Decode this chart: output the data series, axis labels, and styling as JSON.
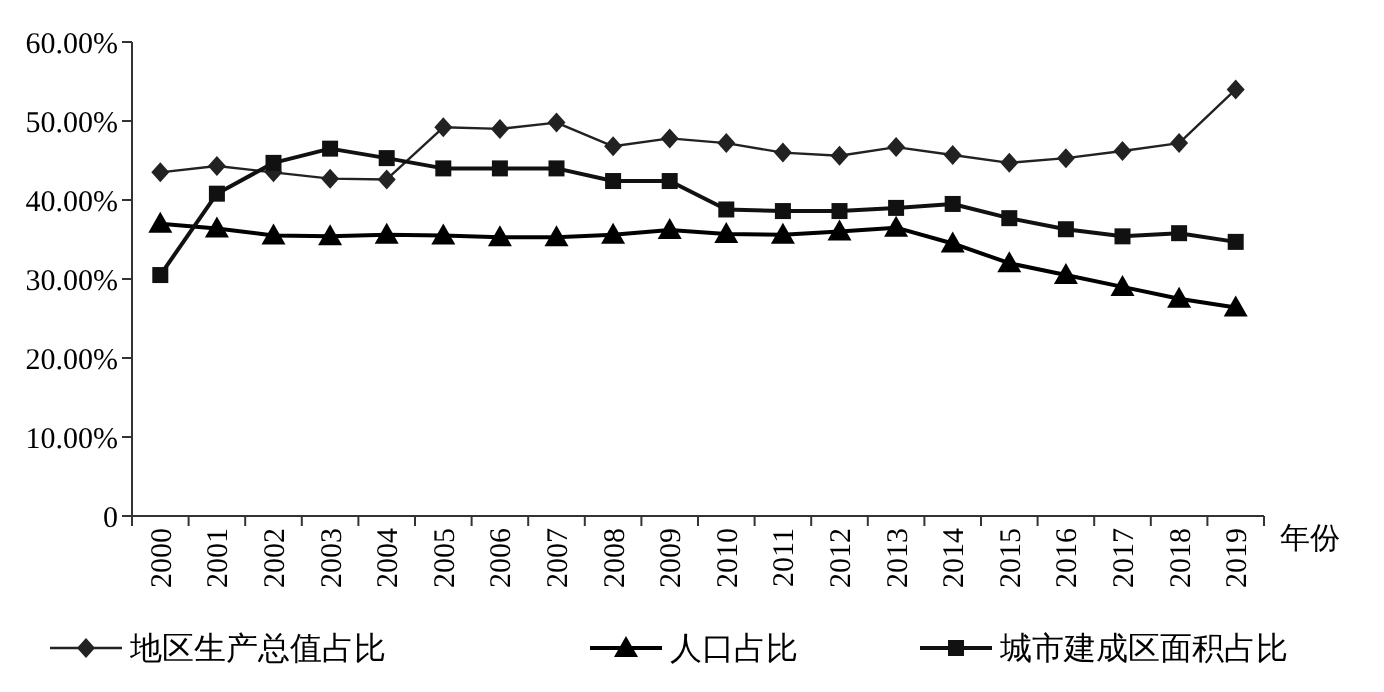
{
  "chart_data": {
    "type": "line",
    "xlabel": "年份",
    "categories": [
      "2000",
      "2001",
      "2002",
      "2003",
      "2004",
      "2005",
      "2006",
      "2007",
      "2008",
      "2009",
      "2010",
      "2011",
      "2012",
      "2013",
      "2014",
      "2015",
      "2016",
      "2017",
      "2018",
      "2019"
    ],
    "series": [
      {
        "name": "地区生产总值占比",
        "color": "#222222",
        "marker": "diamond",
        "values": [
          43.5,
          44.3,
          43.5,
          42.7,
          42.6,
          49.2,
          49.0,
          49.8,
          46.8,
          47.8,
          47.2,
          46.0,
          45.6,
          46.7,
          45.7,
          44.7,
          45.3,
          46.2,
          47.2,
          54.0
        ]
      },
      {
        "name": "人口占比",
        "color": "#000000",
        "marker": "triangle",
        "values": [
          37.0,
          36.4,
          35.5,
          35.4,
          35.6,
          35.5,
          35.3,
          35.3,
          35.6,
          36.2,
          35.7,
          35.6,
          36.0,
          36.5,
          34.5,
          32.0,
          30.5,
          29.0,
          27.5,
          26.4
        ]
      },
      {
        "name": "城市建成区面积占比",
        "color": "#111111",
        "marker": "square",
        "values": [
          30.5,
          40.8,
          44.7,
          46.5,
          45.3,
          44.0,
          44.0,
          44.0,
          42.4,
          42.4,
          38.8,
          38.6,
          38.6,
          39.0,
          39.5,
          37.7,
          36.3,
          35.4,
          35.8,
          34.7
        ]
      }
    ],
    "ylim": [
      0,
      60
    ],
    "yticks": [
      0,
      {
        "value": 10,
        "label": "10.00%"
      },
      {
        "value": 20,
        "label": "20.00%"
      },
      {
        "value": 30,
        "label": "30.00%"
      },
      {
        "value": 40,
        "label": "40.00%"
      },
      {
        "value": 50,
        "label": "50.00%"
      },
      {
        "value": 60,
        "label": "60.00%"
      }
    ],
    "grid": false,
    "legend": "bottom"
  }
}
